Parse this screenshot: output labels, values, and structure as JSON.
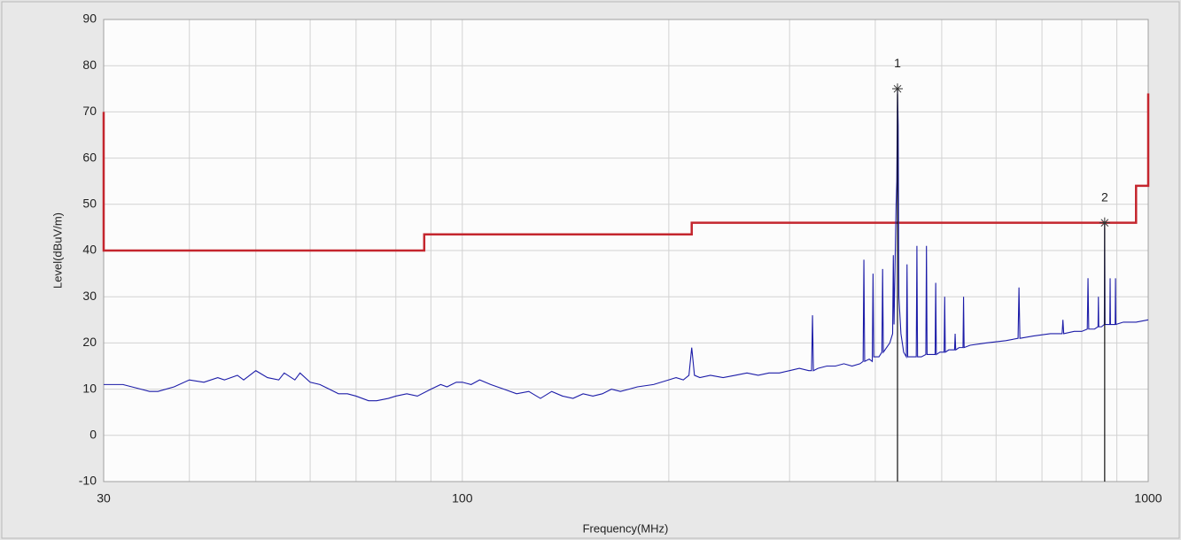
{
  "chart_data": {
    "type": "line",
    "x_label": "Frequency(MHz)",
    "y_label": "Level(dBuV/m)",
    "xscale": "log",
    "xlim": [
      30,
      1000
    ],
    "ylim": [
      -10,
      90
    ],
    "xticks": [
      30,
      100,
      1000
    ],
    "xminor": [
      40,
      50,
      60,
      70,
      80,
      90,
      200,
      300,
      400,
      500,
      600,
      700,
      800,
      900
    ],
    "yticks": [
      -10,
      0,
      10,
      20,
      30,
      40,
      50,
      60,
      70,
      80,
      90
    ],
    "grid": true,
    "series": [
      {
        "color": "#c4262e",
        "x": [
          30,
          30,
          88,
          88,
          216,
          216,
          960,
          960,
          1000,
          1000
        ],
        "values": [
          70,
          40,
          40,
          43.5,
          43.5,
          46,
          46,
          54,
          54,
          74
        ]
      },
      {
        "color": "#1c1ca8",
        "x": [
          30,
          32,
          34,
          35,
          36,
          38,
          40,
          42,
          44,
          45,
          47,
          48,
          50,
          52,
          54,
          55,
          57,
          58,
          60,
          62,
          64,
          66,
          68,
          70,
          73,
          75,
          78,
          80,
          83,
          86,
          90,
          93,
          95,
          98,
          100,
          103,
          106,
          110,
          115,
          120,
          125,
          130,
          135,
          140,
          145,
          150,
          155,
          160,
          165,
          170,
          175,
          180,
          190,
          200,
          205,
          210,
          214,
          216,
          218,
          222,
          230,
          240,
          250,
          260,
          270,
          280,
          290,
          300,
          310,
          320,
          323,
          324,
          325,
          330,
          340,
          350,
          360,
          370,
          380,
          384,
          385,
          386,
          392,
          396,
          397,
          398,
          405,
          409,
          410,
          411,
          420,
          424,
          425,
          426,
          429,
          430,
          431,
          432,
          433,
          436,
          440,
          444,
          445,
          446,
          452,
          459,
          460,
          461,
          467,
          474,
          475,
          476,
          482,
          489,
          490,
          491,
          497,
          504,
          505,
          506,
          512,
          522,
          523,
          524,
          530,
          537,
          538,
          539,
          550,
          580,
          620,
          646,
          648,
          650,
          680,
          720,
          749,
          751,
          753,
          780,
          800,
          815,
          817,
          819,
          835,
          845,
          846,
          847,
          855,
          863,
          864,
          865,
          872,
          879,
          880,
          881,
          888,
          895,
          896,
          897,
          920,
          960,
          1000
        ],
        "values": [
          11,
          11,
          10,
          9.5,
          9.5,
          10.5,
          12,
          11.5,
          12.5,
          12,
          13,
          12,
          14,
          12.5,
          12,
          13.5,
          12,
          13.5,
          11.5,
          11,
          10,
          9,
          9,
          8.5,
          7.5,
          7.5,
          8,
          8.5,
          9,
          8.5,
          10,
          11,
          10.5,
          11.5,
          11.5,
          11,
          12,
          11,
          10,
          9,
          9.5,
          8,
          9.5,
          8.5,
          8,
          9,
          8.5,
          9,
          10,
          9.5,
          10,
          10.5,
          11,
          12,
          12.5,
          12,
          13,
          19,
          13,
          12.5,
          13,
          12.5,
          13,
          13.5,
          13,
          13.5,
          13.5,
          14,
          14.5,
          14,
          14,
          26,
          14,
          14.5,
          15,
          15,
          15.5,
          15,
          15.5,
          16,
          38,
          16,
          16.5,
          16,
          35,
          17,
          17,
          18,
          36,
          18,
          20,
          22,
          39,
          24,
          50,
          55,
          75,
          67,
          30,
          22,
          18,
          17,
          37,
          17,
          17,
          17,
          41,
          17,
          17,
          17.5,
          41,
          17.5,
          17.5,
          17.5,
          33,
          17.5,
          18,
          18,
          30,
          18,
          18.5,
          18.5,
          22,
          18.5,
          19,
          19,
          30,
          19,
          19.5,
          20,
          20.5,
          21,
          32,
          21,
          21.5,
          22,
          22,
          25,
          22,
          22.5,
          22.5,
          23,
          34,
          23,
          23,
          23.5,
          30,
          23.5,
          23.5,
          24,
          46,
          24,
          24,
          24,
          34,
          24,
          24,
          24,
          34,
          24,
          24.5,
          24.5,
          25
        ]
      }
    ],
    "markers": [
      {
        "label": "1",
        "x": 431,
        "y": 75
      },
      {
        "label": "2",
        "x": 864,
        "y": 46
      }
    ]
  }
}
